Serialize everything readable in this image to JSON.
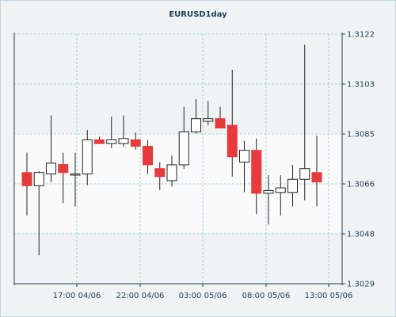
{
  "chart_data": {
    "type": "candlestick",
    "title": "EURUSD1day",
    "ylim": [
      1.3029,
      1.3122
    ],
    "y_ticks": [
      "1.3122",
      "1.3103",
      "1.3085",
      "1.3066",
      "1.3048",
      "1.3029"
    ],
    "x_ticks": [
      "17:00 04/06",
      "22:00 04/06",
      "03:00 05/06",
      "08:00 05/06",
      "13:00 05/06"
    ],
    "grid": true,
    "colors": {
      "up": "#ffffff",
      "down": "#e8393c",
      "wick": "#222222",
      "grid": "#8fc9cd",
      "axis": "#1d3d5a",
      "band": "#fafafa"
    },
    "candles": [
      {
        "open": 1.30704,
        "high": 1.30778,
        "low": 1.30544,
        "close": 1.30655
      },
      {
        "open": 1.30655,
        "high": 1.30709,
        "low": 1.30396,
        "close": 1.30704
      },
      {
        "open": 1.30699,
        "high": 1.30917,
        "low": 1.30669,
        "close": 1.30739
      },
      {
        "open": 1.30734,
        "high": 1.30778,
        "low": 1.30591,
        "close": 1.30704
      },
      {
        "open": 1.30699,
        "high": 1.30778,
        "low": 1.30578,
        "close": 1.30699
      },
      {
        "open": 1.30699,
        "high": 1.30863,
        "low": 1.30657,
        "close": 1.30826
      },
      {
        "open": 1.30826,
        "high": 1.30838,
        "low": 1.30812,
        "close": 1.30812
      },
      {
        "open": 1.30812,
        "high": 1.30912,
        "low": 1.30795,
        "close": 1.30826
      },
      {
        "open": 1.30812,
        "high": 1.30917,
        "low": 1.308,
        "close": 1.30831
      },
      {
        "open": 1.30826,
        "high": 1.30853,
        "low": 1.3079,
        "close": 1.30802
      },
      {
        "open": 1.30802,
        "high": 1.30826,
        "low": 1.30699,
        "close": 1.30733
      },
      {
        "open": 1.30719,
        "high": 1.30743,
        "low": 1.30639,
        "close": 1.30689
      },
      {
        "open": 1.30674,
        "high": 1.30767,
        "low": 1.30652,
        "close": 1.30733
      },
      {
        "open": 1.30733,
        "high": 1.30949,
        "low": 1.30718,
        "close": 1.30856
      },
      {
        "open": 1.30856,
        "high": 1.30978,
        "low": 1.3085,
        "close": 1.30905
      },
      {
        "open": 1.30895,
        "high": 1.30971,
        "low": 1.3088,
        "close": 1.30905
      },
      {
        "open": 1.30905,
        "high": 1.30949,
        "low": 1.3087,
        "close": 1.3087
      },
      {
        "open": 1.3088,
        "high": 1.31087,
        "low": 1.30689,
        "close": 1.30763
      },
      {
        "open": 1.30743,
        "high": 1.30822,
        "low": 1.30631,
        "close": 1.30787
      },
      {
        "open": 1.30787,
        "high": 1.30831,
        "low": 1.30549,
        "close": 1.30627
      },
      {
        "open": 1.30627,
        "high": 1.30694,
        "low": 1.3051,
        "close": 1.30637
      },
      {
        "open": 1.3063,
        "high": 1.30694,
        "low": 1.30544,
        "close": 1.30647
      },
      {
        "open": 1.3063,
        "high": 1.30733,
        "low": 1.30578,
        "close": 1.30679
      },
      {
        "open": 1.30679,
        "high": 1.3118,
        "low": 1.30601,
        "close": 1.30719
      },
      {
        "open": 1.30704,
        "high": 1.30841,
        "low": 1.30578,
        "close": 1.30669
      }
    ]
  }
}
